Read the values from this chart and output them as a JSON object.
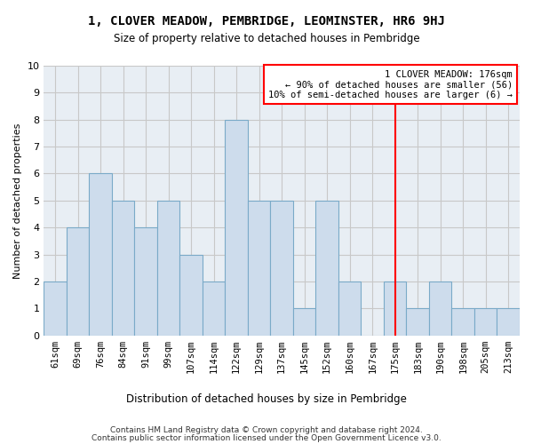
{
  "title": "1, CLOVER MEADOW, PEMBRIDGE, LEOMINSTER, HR6 9HJ",
  "subtitle": "Size of property relative to detached houses in Pembridge",
  "xlabel": "Distribution of detached houses by size in Pembridge",
  "ylabel": "Number of detached properties",
  "categories": [
    "61sqm",
    "69sqm",
    "76sqm",
    "84sqm",
    "91sqm",
    "99sqm",
    "107sqm",
    "114sqm",
    "122sqm",
    "129sqm",
    "137sqm",
    "145sqm",
    "152sqm",
    "160sqm",
    "167sqm",
    "175sqm",
    "183sqm",
    "190sqm",
    "198sqm",
    "205sqm",
    "213sqm"
  ],
  "values": [
    2,
    4,
    6,
    5,
    4,
    5,
    3,
    2,
    8,
    5,
    5,
    1,
    5,
    2,
    0,
    2,
    1,
    2,
    1,
    1,
    1
  ],
  "bar_color": "#cddcec",
  "bar_edge_color": "#7aaac8",
  "grid_color": "#c8c8c8",
  "background_color": "#e8eef4",
  "red_line_x": 15,
  "annotation_title": "1 CLOVER MEADOW: 176sqm",
  "annotation_line1": "← 90% of detached houses are smaller (56)",
  "annotation_line2": "10% of semi-detached houses are larger (6) →",
  "ylim": [
    0,
    10
  ],
  "yticks": [
    0,
    1,
    2,
    3,
    4,
    5,
    6,
    7,
    8,
    9,
    10
  ],
  "footer_line1": "Contains HM Land Registry data © Crown copyright and database right 2024.",
  "footer_line2": "Contains public sector information licensed under the Open Government Licence v3.0."
}
